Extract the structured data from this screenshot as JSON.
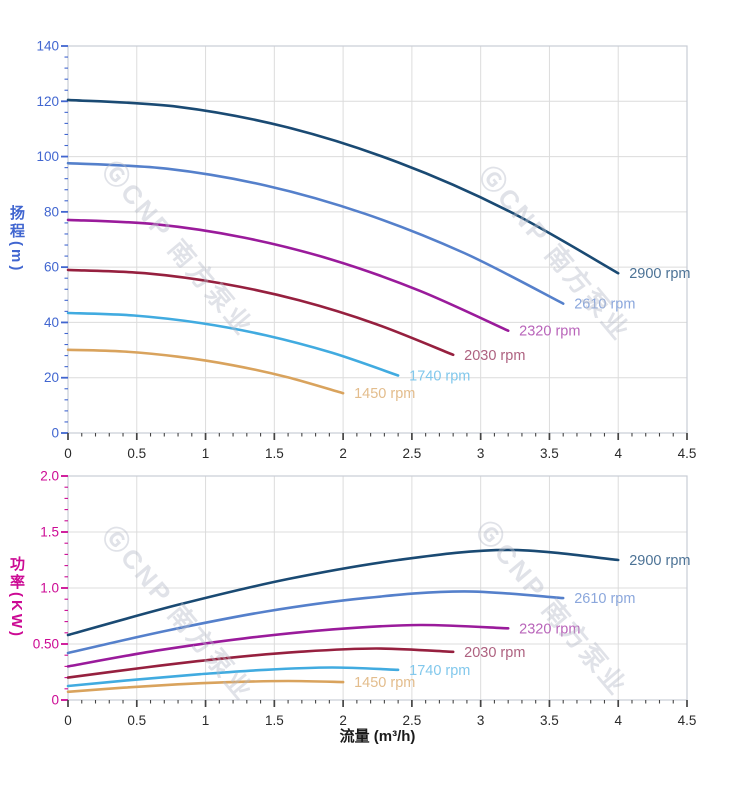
{
  "watermark": {
    "text": "ⒼCNP 南方泵业",
    "color": "#b7bcc9",
    "opacity": 0.42
  },
  "frame_color": "#c9cdd6",
  "grid_color": "#dcdcdc",
  "x_axis": {
    "label": "流量 (m³/h)",
    "range": [
      0,
      4.5
    ],
    "tick_values": [
      0,
      0.5,
      1,
      1.5,
      2,
      2.5,
      3,
      3.5,
      4,
      4.5
    ],
    "tick_labels": [
      "0",
      "0.5",
      "1",
      "1.5",
      "2",
      "2.5",
      "3",
      "3.5",
      "4",
      "4.5"
    ],
    "minor_step": 0.1,
    "color": "#2a2a2a"
  },
  "chart_data": [
    {
      "type": "line",
      "id": "head",
      "ylabel": "扬程(m)",
      "axis_color": "#4166d0",
      "xlim": [
        0,
        4.5
      ],
      "ylim": [
        0,
        140
      ],
      "y_tick_values": [
        0,
        20,
        40,
        60,
        80,
        100,
        120,
        140
      ],
      "y_tick_labels": [
        "0",
        "20",
        "40",
        "60",
        "80",
        "100",
        "120",
        "140"
      ],
      "y_minor_step": 4,
      "grid": true,
      "legend_position": "end-of-curve",
      "series": [
        {
          "name": "2900 rpm",
          "color": "#1a4a73",
          "label_color": "#4d7396",
          "points": [
            [
              0,
              120.5
            ],
            [
              0.8,
              118.0
            ],
            [
              1.6,
              110.5
            ],
            [
              2.4,
              97.9
            ],
            [
              3.2,
              80.4
            ],
            [
              4.0,
              57.8
            ]
          ]
        },
        {
          "name": "2610 rpm",
          "color": "#5580cb",
          "label_color": "#8ba7dc",
          "points": [
            [
              0,
              97.6
            ],
            [
              0.72,
              95.6
            ],
            [
              1.44,
              89.5
            ],
            [
              2.16,
              79.3
            ],
            [
              2.88,
              65.1
            ],
            [
              3.6,
              46.8
            ]
          ]
        },
        {
          "name": "2320 rpm",
          "color": "#9a1b9b",
          "label_color": "#b965ba",
          "points": [
            [
              0,
              77.1
            ],
            [
              0.64,
              75.5
            ],
            [
              1.28,
              70.7
            ],
            [
              1.92,
              62.7
            ],
            [
              2.56,
              51.4
            ],
            [
              3.2,
              37.0
            ]
          ]
        },
        {
          "name": "2030 rpm",
          "color": "#96203f",
          "label_color": "#ae6280",
          "points": [
            [
              0,
              59.0
            ],
            [
              0.56,
              57.8
            ],
            [
              1.12,
              54.1
            ],
            [
              1.68,
              48.0
            ],
            [
              2.24,
              39.4
            ],
            [
              2.8,
              28.3
            ]
          ]
        },
        {
          "name": "1740 rpm",
          "color": "#41abe0",
          "label_color": "#82c8ec",
          "points": [
            [
              0,
              43.4
            ],
            [
              0.48,
              42.5
            ],
            [
              0.96,
              39.8
            ],
            [
              1.44,
              35.3
            ],
            [
              1.92,
              29.0
            ],
            [
              2.4,
              20.8
            ]
          ]
        },
        {
          "name": "1450 rpm",
          "color": "#d9a35d",
          "label_color": "#e3bd8d",
          "points": [
            [
              0,
              30.1
            ],
            [
              0.4,
              29.5
            ],
            [
              0.8,
              27.6
            ],
            [
              1.2,
              24.5
            ],
            [
              1.6,
              20.1
            ],
            [
              2.0,
              14.4
            ]
          ]
        }
      ]
    },
    {
      "type": "line",
      "id": "power",
      "ylabel": "功率(KW)",
      "axis_color": "#cc0a94",
      "xlim": [
        0,
        4.5
      ],
      "ylim": [
        0,
        2
      ],
      "y_tick_values": [
        0,
        0.5,
        1,
        1.5,
        2
      ],
      "y_tick_labels": [
        "0",
        "0.50",
        "1.0",
        "1.5",
        "2.0"
      ],
      "y_minor_step": 0.1,
      "grid": true,
      "legend_position": "end-of-curve",
      "series": [
        {
          "name": "2900 rpm",
          "color": "#1a4a73",
          "label_color": "#4d7396",
          "points": [
            [
              0,
              0.58
            ],
            [
              0.8,
              0.85
            ],
            [
              1.6,
              1.08
            ],
            [
              2.4,
              1.25
            ],
            [
              3.2,
              1.34
            ],
            [
              4.0,
              1.25
            ]
          ]
        },
        {
          "name": "2610 rpm",
          "color": "#5580cb",
          "label_color": "#8ba7dc",
          "points": [
            [
              0,
              0.42
            ],
            [
              0.72,
              0.62
            ],
            [
              1.44,
              0.79
            ],
            [
              2.16,
              0.91
            ],
            [
              2.88,
              0.97
            ],
            [
              3.6,
              0.91
            ]
          ]
        },
        {
          "name": "2320 rpm",
          "color": "#9a1b9b",
          "label_color": "#b965ba",
          "points": [
            [
              0,
              0.3
            ],
            [
              0.64,
              0.44
            ],
            [
              1.28,
              0.55
            ],
            [
              1.92,
              0.63
            ],
            [
              2.56,
              0.67
            ],
            [
              3.2,
              0.64
            ]
          ]
        },
        {
          "name": "2030 rpm",
          "color": "#96203f",
          "label_color": "#ae6280",
          "points": [
            [
              0,
              0.2
            ],
            [
              0.56,
              0.29
            ],
            [
              1.12,
              0.37
            ],
            [
              1.68,
              0.43
            ],
            [
              2.24,
              0.46
            ],
            [
              2.8,
              0.43
            ]
          ]
        },
        {
          "name": "1740 rpm",
          "color": "#41abe0",
          "label_color": "#82c8ec",
          "points": [
            [
              0,
              0.125
            ],
            [
              0.48,
              0.18
            ],
            [
              0.96,
              0.23
            ],
            [
              1.44,
              0.27
            ],
            [
              1.92,
              0.29
            ],
            [
              2.4,
              0.27
            ]
          ]
        },
        {
          "name": "1450 rpm",
          "color": "#d9a35d",
          "label_color": "#e3bd8d",
          "points": [
            [
              0,
              0.073
            ],
            [
              0.4,
              0.11
            ],
            [
              0.8,
              0.14
            ],
            [
              1.2,
              0.16
            ],
            [
              1.6,
              0.17
            ],
            [
              2.0,
              0.16
            ]
          ]
        }
      ]
    }
  ]
}
